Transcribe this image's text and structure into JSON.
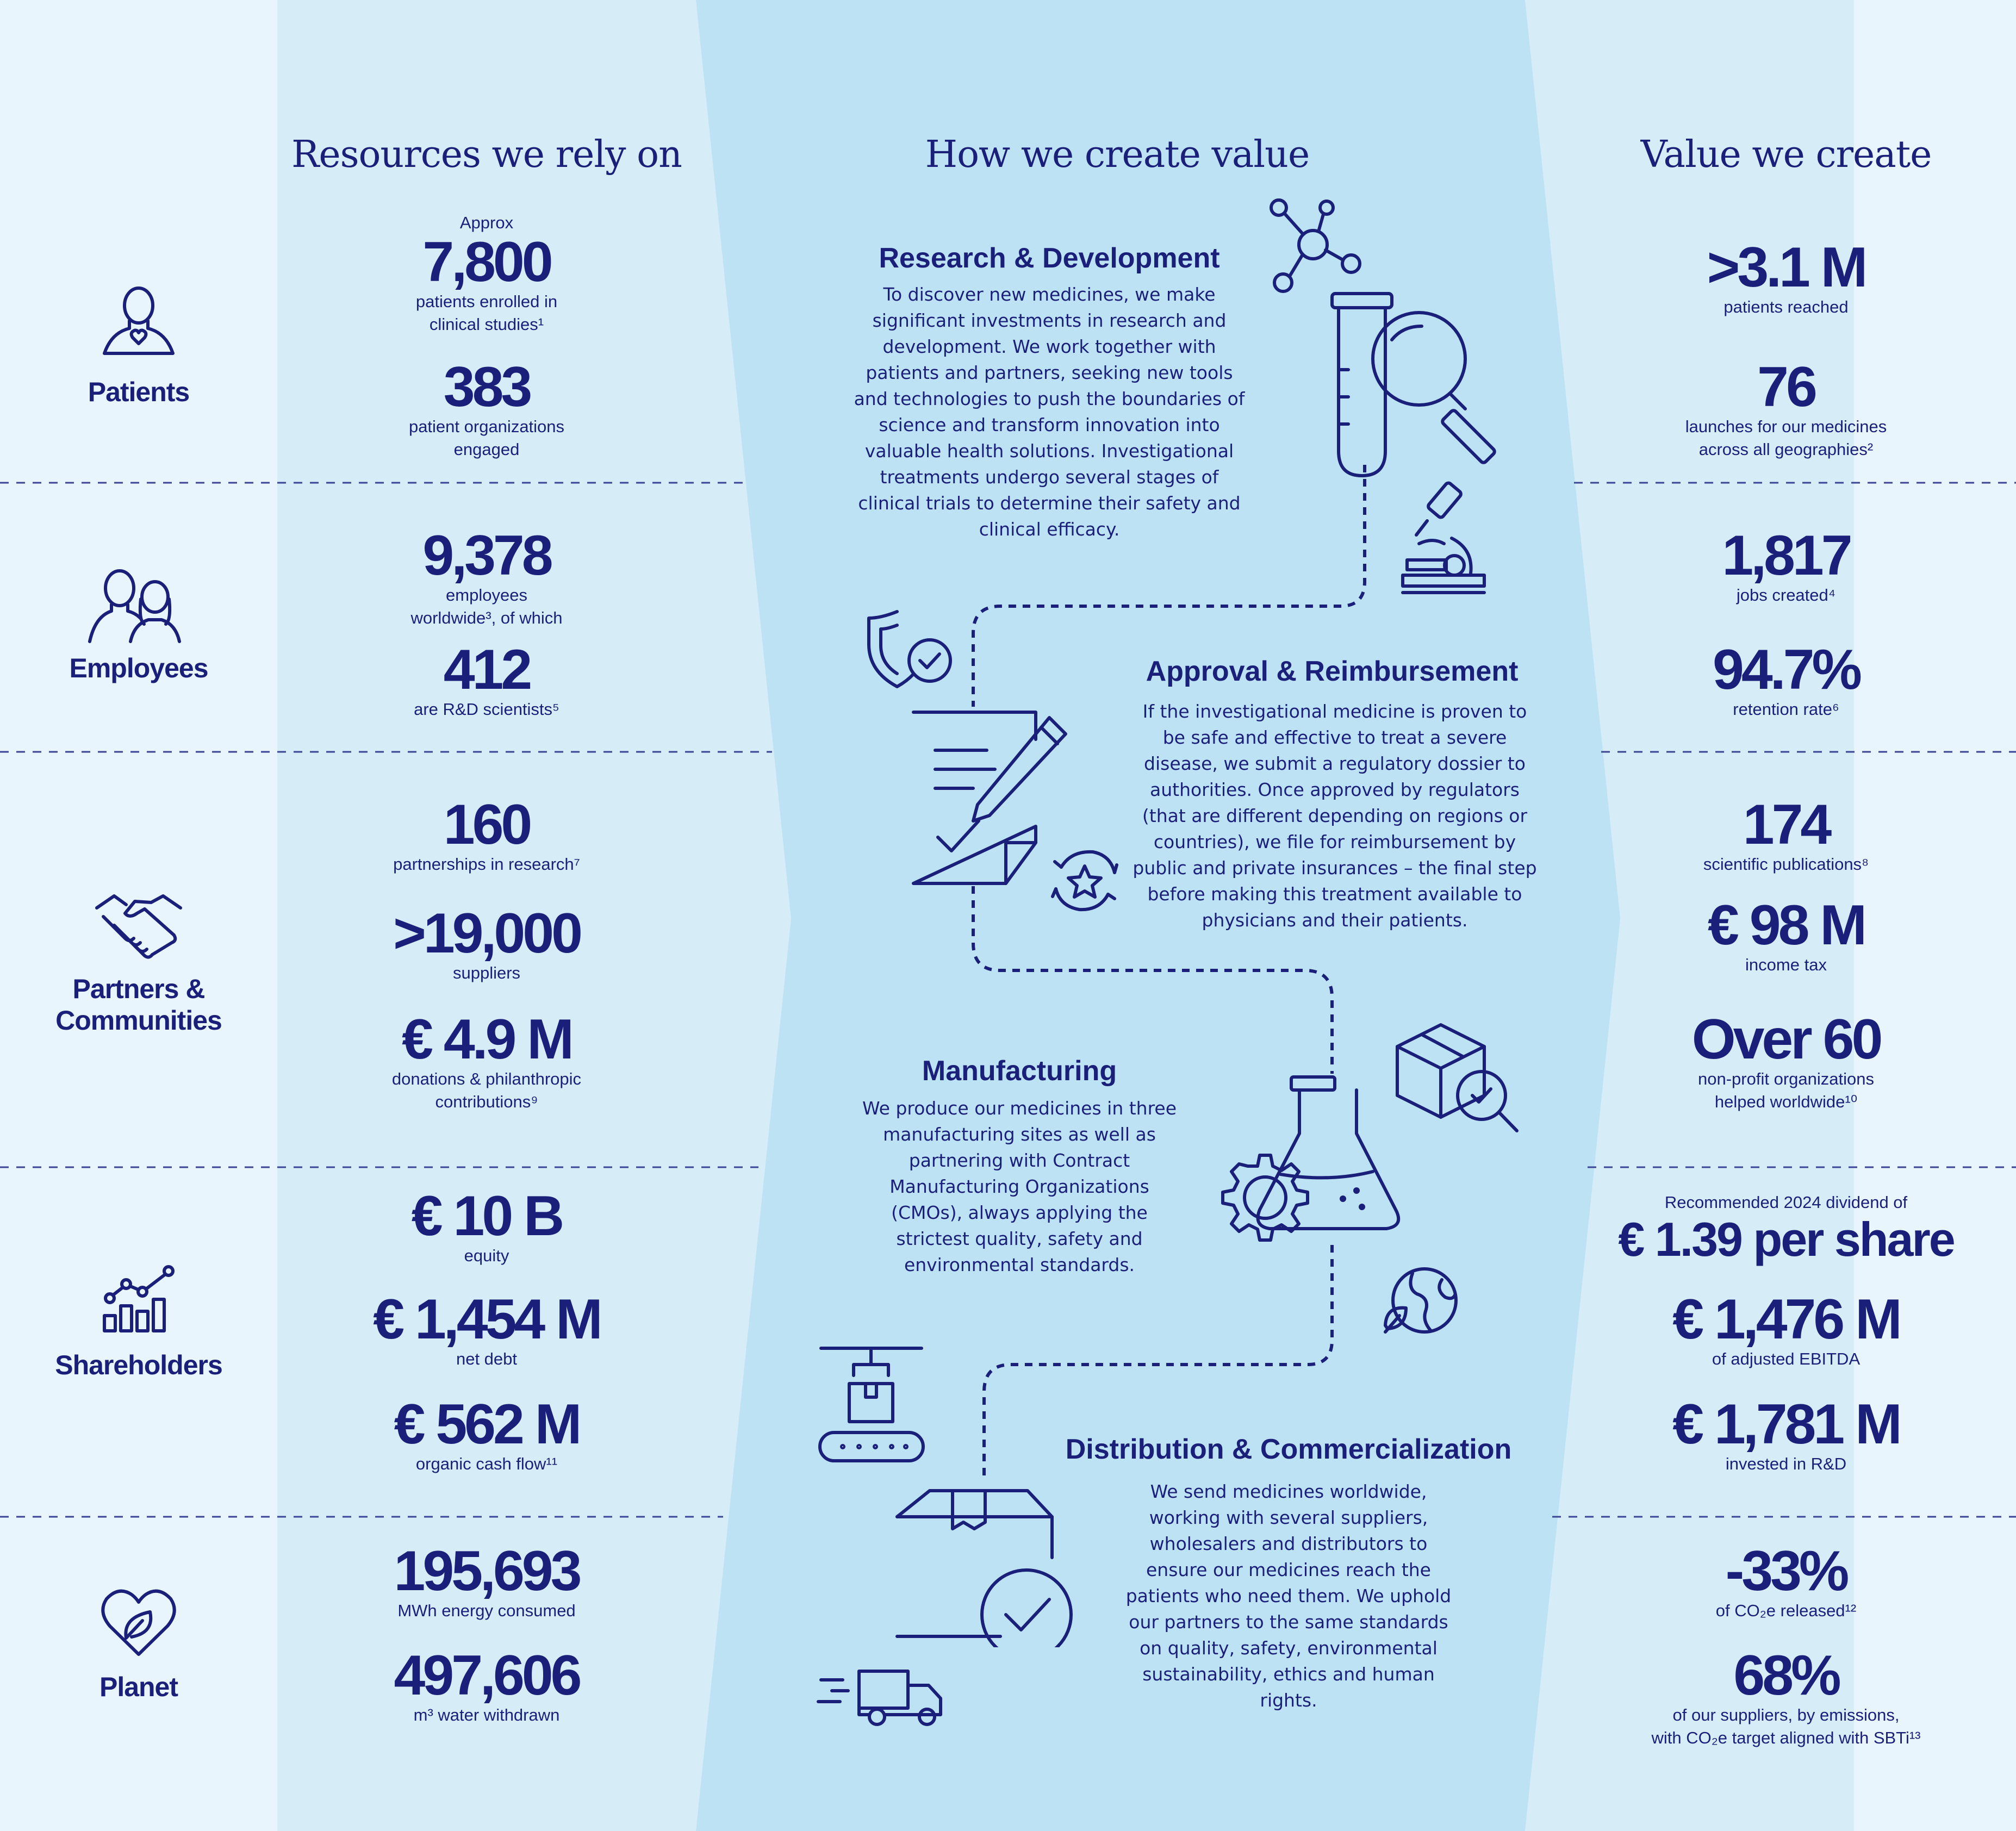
{
  "colors": {
    "bg_left": "#e8f5fc",
    "bg_mid": "#d6edf8",
    "bg_center": "#bde2f3",
    "text": "#1a1f7a"
  },
  "headers": {
    "resources": "Resources we rely on",
    "how": "How we create value",
    "value": "Value we create"
  },
  "categories": {
    "patients": "Patients",
    "employees": "Employees",
    "partners": "Partners &\nCommunities",
    "shareholders": "Shareholders",
    "planet": "Planet"
  },
  "category_icons": [
    "patient-heart-icon",
    "employees-icon",
    "handshake-icon",
    "growth-chart-icon",
    "heart-leaf-icon"
  ],
  "resources": {
    "clinical": {
      "prefix": "Approx",
      "value": "7,800",
      "label": "patients enrolled in\nclinical studies¹"
    },
    "patient_orgs": {
      "value": "383",
      "label": "patient organizations\nengaged"
    },
    "employees": {
      "value": "9,378",
      "label": "employees\nworldwide³, of which"
    },
    "scientists": {
      "value": "412",
      "label": "are R&D scientists⁵"
    },
    "partnerships": {
      "value": "160",
      "label": "partnerships in research⁷"
    },
    "suppliers": {
      "value": ">19,000",
      "label": "suppliers"
    },
    "donations": {
      "value": "€ 4.9 M",
      "label": "donations & philanthropic\ncontributions⁹"
    },
    "equity": {
      "value": "€ 10 B",
      "label": "equity"
    },
    "net_debt": {
      "value": "€ 1,454 M",
      "label": "net debt"
    },
    "cash_flow": {
      "value": "€ 562 M",
      "label": "organic cash flow¹¹"
    },
    "energy": {
      "value": "195,693",
      "label": "MWh energy consumed"
    },
    "water": {
      "value": "497,606",
      "label": "m³ water withdrawn"
    }
  },
  "value_created": {
    "patients_reached": {
      "value": ">3.1 M",
      "label": "patients reached"
    },
    "launches": {
      "value": "76",
      "label": "launches for our medicines\nacross all geographies²"
    },
    "jobs": {
      "value": "1,817",
      "label": "jobs created⁴"
    },
    "retention": {
      "value": "94.7%",
      "label": "retention rate⁶"
    },
    "publications": {
      "value": "174",
      "label": "scientific publications⁸"
    },
    "income_tax": {
      "value": "€ 98 M",
      "label": "income tax"
    },
    "nonprofits": {
      "value": "Over 60",
      "label": "non-profit organizations\nhelped worldwide¹⁰"
    },
    "dividend": {
      "prefix": "Recommended 2024 dividend of",
      "value": "€ 1.39 per share"
    },
    "ebitda": {
      "value": "€ 1,476 M",
      "label": "of adjusted EBITDA"
    },
    "rnd_invested": {
      "value": "€ 1,781 M",
      "label": "invested in R&D"
    },
    "co2": {
      "value": "-33%",
      "label": "of CO₂e released¹²"
    },
    "sbti": {
      "value": "68%",
      "label": "of our suppliers, by emissions,\nwith CO₂e target aligned with SBTi¹³"
    }
  },
  "process": {
    "rnd": {
      "title": "Research & Development",
      "body": "To discover new medicines, we make significant investments in research and development. We work together with patients and partners, seeking new tools and technologies to push the boundaries of science and transform innovation into valuable health solutions. Investigational treatments undergo several stages of clinical trials to determine their safety and clinical efficacy.",
      "icons": [
        "molecule-icon",
        "test-tube-magnifier-icon",
        "microscope-icon"
      ]
    },
    "approval": {
      "title": "Approval & Reimbursement",
      "body": "If the investigational medicine is proven to be safe and effective to treat a severe disease, we submit a regulatory dossier to authorities. Once approved by regulators (that are different depending on regions or countries), we file for reimbursement by public and private insurances – the final step before making this treatment available to physicians and their patients.",
      "icons": [
        "shield-check-icon",
        "signed-document-icon",
        "star-cycle-icon"
      ]
    },
    "manufacturing": {
      "title": "Manufacturing",
      "body": "We produce our medicines in three manufacturing sites as well as partnering with Contract Manufacturing Organizations (CMOs), always applying the strictest quality, safety and environmental standards.",
      "icons": [
        "box-inspection-icon",
        "flask-gear-icon",
        "globe-leaf-icon"
      ]
    },
    "distribution": {
      "title": "Distribution & Commercialization",
      "body": "We send medicines worldwide, working with several suppliers, wholesalers and distributors to ensure our medicines reach the patients who need them. We uphold our partners to the same standards on quality, safety, environmental sustainability, ethics and human rights.",
      "icons": [
        "conveyor-icon",
        "package-check-icon",
        "delivery-truck-icon"
      ]
    }
  }
}
